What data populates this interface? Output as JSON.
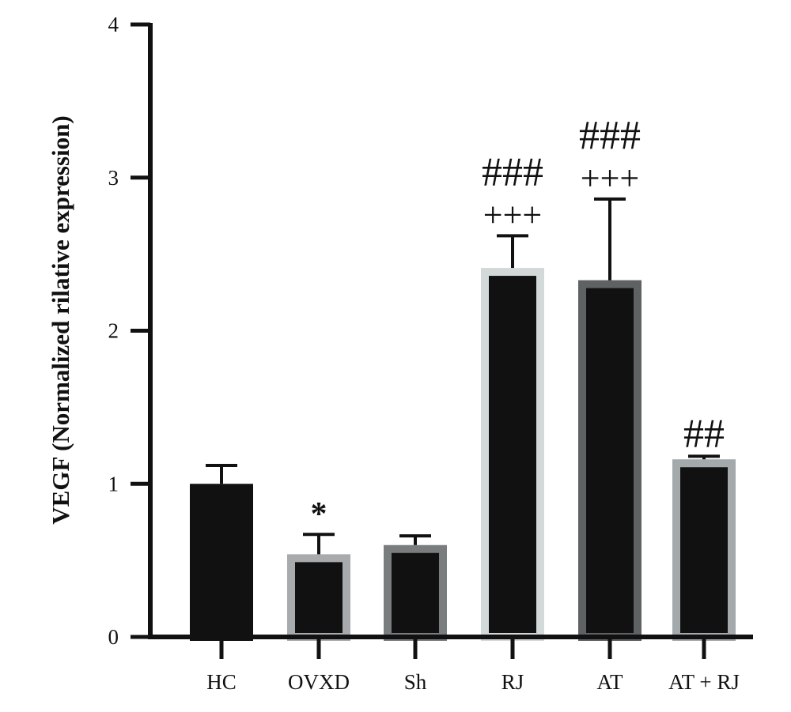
{
  "chart_data": {
    "type": "bar",
    "title": "",
    "xlabel": "",
    "ylabel": "VEGF (Normalized rilative expression)",
    "ylim": [
      0,
      4
    ],
    "yticks": [
      "0",
      "1",
      "2",
      "3",
      "4"
    ],
    "grid": false,
    "categories": [
      "HC",
      "OVXD",
      "Sh",
      "RJ",
      "AT",
      "AT + RJ"
    ],
    "values": [
      1.0,
      0.54,
      0.6,
      2.41,
      2.33,
      1.16
    ],
    "errors": [
      0.12,
      0.13,
      0.06,
      0.21,
      0.53,
      0.02
    ],
    "bar_fill": "#111111",
    "bar_outline_colors": [
      "#111111",
      "#a7abae",
      "#7a7d7e",
      "#d3d8d8",
      "#5f6263",
      "#a4a9ac"
    ],
    "annotations": [
      {
        "category": "OVXD",
        "lines": [
          "*"
        ]
      },
      {
        "category": "RJ",
        "lines": [
          "###",
          "+++"
        ]
      },
      {
        "category": "AT",
        "lines": [
          "###",
          "+++"
        ]
      },
      {
        "category": "AT + RJ",
        "lines": [
          "##"
        ]
      }
    ]
  }
}
